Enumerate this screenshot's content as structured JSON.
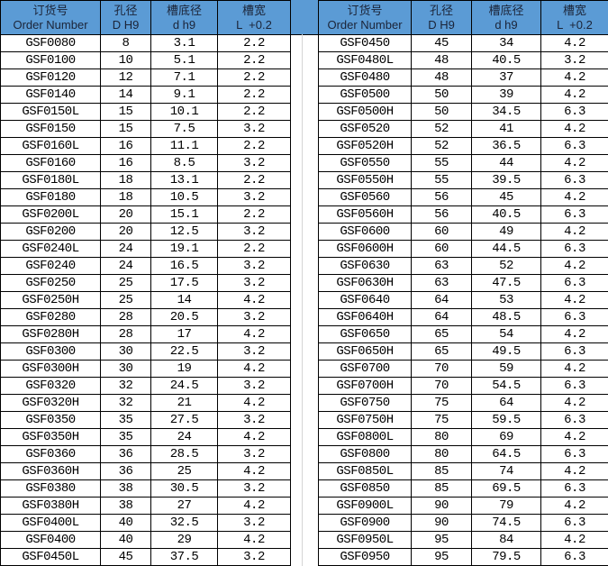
{
  "headers": [
    {
      "cn": "订货号",
      "en": "Order Number"
    },
    {
      "cn": "孔径",
      "en": "D H9"
    },
    {
      "cn": "槽底径",
      "en": "d h9"
    },
    {
      "cn": "槽宽",
      "en": "L  +0.2"
    }
  ],
  "colors": {
    "header_bg": "#5b9bd5"
  },
  "left_rows": [
    [
      "GSF0080",
      "8",
      "3.1",
      "2.2"
    ],
    [
      "GSF0100",
      "10",
      "5.1",
      "2.2"
    ],
    [
      "GSF0120",
      "12",
      "7.1",
      "2.2"
    ],
    [
      "GSF0140",
      "14",
      "9.1",
      "2.2"
    ],
    [
      "GSF0150L",
      "15",
      "10.1",
      "2.2"
    ],
    [
      "GSF0150",
      "15",
      "7.5",
      "3.2"
    ],
    [
      "GSF0160L",
      "16",
      "11.1",
      "2.2"
    ],
    [
      "GSF0160",
      "16",
      "8.5",
      "3.2"
    ],
    [
      "GSF0180L",
      "18",
      "13.1",
      "2.2"
    ],
    [
      "GSF0180",
      "18",
      "10.5",
      "3.2"
    ],
    [
      "GSF0200L",
      "20",
      "15.1",
      "2.2"
    ],
    [
      "GSF0200",
      "20",
      "12.5",
      "3.2"
    ],
    [
      "GSF0240L",
      "24",
      "19.1",
      "2.2"
    ],
    [
      "GSF0240",
      "24",
      "16.5",
      "3.2"
    ],
    [
      "GSF0250",
      "25",
      "17.5",
      "3.2"
    ],
    [
      "GSF0250H",
      "25",
      "14",
      "4.2"
    ],
    [
      "GSF0280",
      "28",
      "20.5",
      "3.2"
    ],
    [
      "GSF0280H",
      "28",
      "17",
      "4.2"
    ],
    [
      "GSF0300",
      "30",
      "22.5",
      "3.2"
    ],
    [
      "GSF0300H",
      "30",
      "19",
      "4.2"
    ],
    [
      "GSF0320",
      "32",
      "24.5",
      "3.2"
    ],
    [
      "GSF0320H",
      "32",
      "21",
      "4.2"
    ],
    [
      "GSF0350",
      "35",
      "27.5",
      "3.2"
    ],
    [
      "GSF0350H",
      "35",
      "24",
      "4.2"
    ],
    [
      "GSF0360",
      "36",
      "28.5",
      "3.2"
    ],
    [
      "GSF0360H",
      "36",
      "25",
      "4.2"
    ],
    [
      "GSF0380",
      "38",
      "30.5",
      "3.2"
    ],
    [
      "GSF0380H",
      "38",
      "27",
      "4.2"
    ],
    [
      "GSF0400L",
      "40",
      "32.5",
      "3.2"
    ],
    [
      "GSF0400",
      "40",
      "29",
      "4.2"
    ],
    [
      "GSF0450L",
      "45",
      "37.5",
      "3.2"
    ]
  ],
  "right_rows": [
    [
      "GSF0450",
      "45",
      "34",
      "4.2"
    ],
    [
      "GSF0480L",
      "48",
      "40.5",
      "3.2"
    ],
    [
      "GSF0480",
      "48",
      "37",
      "4.2"
    ],
    [
      "GSF0500",
      "50",
      "39",
      "4.2"
    ],
    [
      "GSF0500H",
      "50",
      "34.5",
      "6.3"
    ],
    [
      "GSF0520",
      "52",
      "41",
      "4.2"
    ],
    [
      "GSF0520H",
      "52",
      "36.5",
      "6.3"
    ],
    [
      "GSF0550",
      "55",
      "44",
      "4.2"
    ],
    [
      "GSF0550H",
      "55",
      "39.5",
      "6.3"
    ],
    [
      "GSF0560",
      "56",
      "45",
      "4.2"
    ],
    [
      "GSF0560H",
      "56",
      "40.5",
      "6.3"
    ],
    [
      "GSF0600",
      "60",
      "49",
      "4.2"
    ],
    [
      "GSF0600H",
      "60",
      "44.5",
      "6.3"
    ],
    [
      "GSF0630",
      "63",
      "52",
      "4.2"
    ],
    [
      "GSF0630H",
      "63",
      "47.5",
      "6.3"
    ],
    [
      "GSF0640",
      "64",
      "53",
      "4.2"
    ],
    [
      "GSF0640H",
      "64",
      "48.5",
      "6.3"
    ],
    [
      "GSF0650",
      "65",
      "54",
      "4.2"
    ],
    [
      "GSF0650H",
      "65",
      "49.5",
      "6.3"
    ],
    [
      "GSF0700",
      "70",
      "59",
      "4.2"
    ],
    [
      "GSF0700H",
      "70",
      "54.5",
      "6.3"
    ],
    [
      "GSF0750",
      "75",
      "64",
      "4.2"
    ],
    [
      "GSF0750H",
      "75",
      "59.5",
      "6.3"
    ],
    [
      "GSF0800L",
      "80",
      "69",
      "4.2"
    ],
    [
      "GSF0800",
      "80",
      "64.5",
      "6.3"
    ],
    [
      "GSF0850L",
      "85",
      "74",
      "4.2"
    ],
    [
      "GSF0850",
      "85",
      "69.5",
      "6.3"
    ],
    [
      "GSF0900L",
      "90",
      "79",
      "4.2"
    ],
    [
      "GSF0900",
      "90",
      "74.5",
      "6.3"
    ],
    [
      "GSF0950L",
      "95",
      "84",
      "4.2"
    ],
    [
      "GSF0950",
      "95",
      "79.5",
      "6.3"
    ]
  ]
}
